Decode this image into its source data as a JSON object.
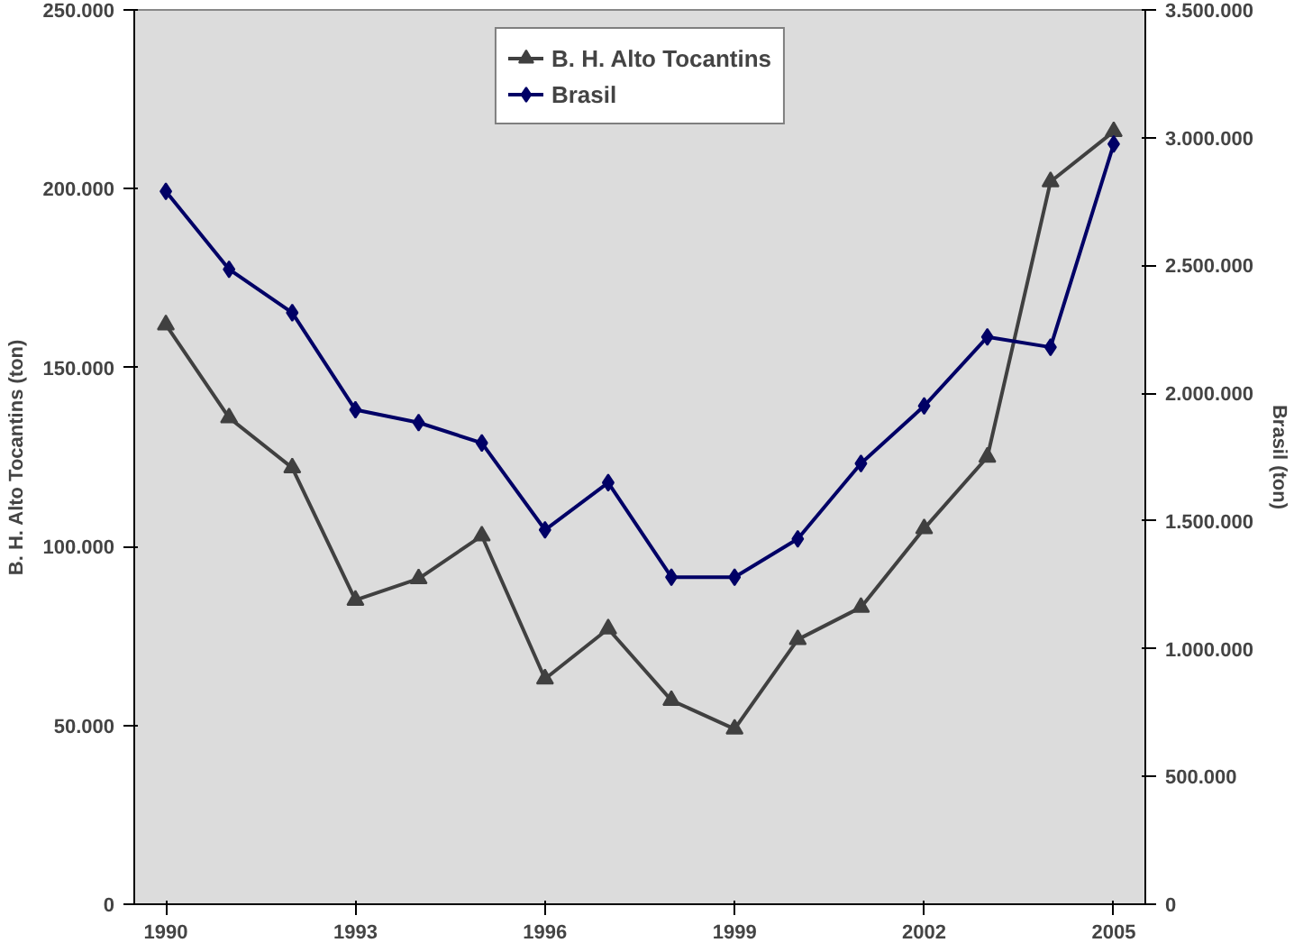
{
  "chart_data": {
    "type": "line",
    "ylabel": "B. H. Alto Tocantins (ton)",
    "y2label": "Brasil (ton)",
    "x": [
      1990,
      1991,
      1992,
      1993,
      1994,
      1995,
      1996,
      1997,
      1998,
      1999,
      2000,
      2001,
      2002,
      2003,
      2004,
      2005
    ],
    "xlim": [
      1989.5,
      2005.5
    ],
    "xticks": [
      1990,
      1993,
      1996,
      1999,
      2002,
      2005
    ],
    "ylim": [
      0,
      250000
    ],
    "yticks": [
      {
        "value": 0,
        "label": "0"
      },
      {
        "value": 50000,
        "label": "50.000"
      },
      {
        "value": 100000,
        "label": "100.000"
      },
      {
        "value": 150000,
        "label": "150.000"
      },
      {
        "value": 200000,
        "label": "200.000"
      },
      {
        "value": 250000,
        "label": "250.000"
      }
    ],
    "y2lim": [
      0,
      3500000
    ],
    "y2ticks": [
      {
        "value": 0,
        "label": "0"
      },
      {
        "value": 500000,
        "label": "500.000"
      },
      {
        "value": 1000000,
        "label": "1.000.000"
      },
      {
        "value": 1500000,
        "label": "1.500.000"
      },
      {
        "value": 2000000,
        "label": "2.000.000"
      },
      {
        "value": 2500000,
        "label": "2.500.000"
      },
      {
        "value": 3000000,
        "label": "3.000.000"
      },
      {
        "value": 3500000,
        "label": "3.500.000"
      }
    ],
    "grid": false,
    "legend": "top",
    "line_style": "solid",
    "series": [
      {
        "name": "B. H. Alto Tocantins",
        "color": "#404040",
        "marker": "triangle",
        "values": [
          162000,
          136000,
          122000,
          85000,
          91000,
          103000,
          63000,
          77000,
          57000,
          49000,
          74000,
          83000,
          105000,
          125000,
          202000,
          216000
        ]
      },
      {
        "name": "Brasil",
        "color": "#000066",
        "marker": "diamond",
        "axis": "y2",
        "values": [
          2790000,
          2485000,
          2315000,
          1935000,
          1885000,
          1805000,
          1465000,
          1650000,
          1280000,
          1280000,
          1430000,
          1725000,
          1950000,
          2220000,
          2180000,
          2975000
        ]
      }
    ]
  }
}
